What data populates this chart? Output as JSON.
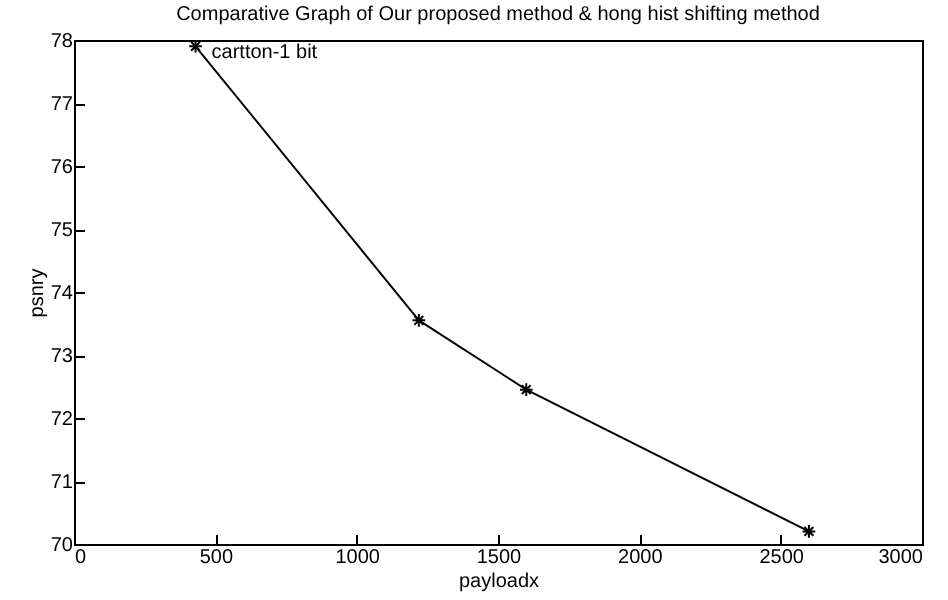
{
  "chart_data": {
    "type": "line",
    "title": "Comparative Graph of Our proposed method & hong hist shifting method",
    "xlabel": "payloadx",
    "ylabel": "psnry",
    "x": [
      430,
      1220,
      1600,
      2600
    ],
    "series": [
      {
        "color": "#000000",
        "values": [
          77.9,
          73.55,
          72.45,
          70.2
        ]
      }
    ],
    "xlim": [
      0,
      3000
    ],
    "xticks": [
      0,
      500,
      1000,
      1500,
      2000,
      2500,
      3000
    ],
    "ylim": [
      70,
      78
    ],
    "yticks": [
      70,
      71,
      72,
      73,
      74,
      75,
      76,
      77,
      78
    ],
    "marker": "cross",
    "line_style": "solid",
    "grid": false,
    "annotations": [
      {
        "text": "cartton-1 bit",
        "x": 430,
        "y": 77.9
      }
    ]
  }
}
